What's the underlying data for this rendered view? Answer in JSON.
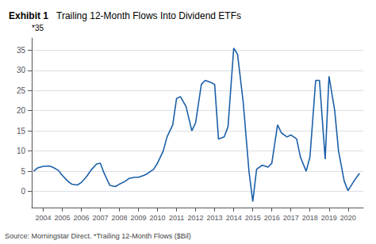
{
  "chart_data": {
    "type": "line",
    "title": "Exhibit 1",
    "subtitle": "Trailing 12-Month Flows Into Dividend ETFs",
    "annotations": [
      "*35",
      "Source: Morningstar Direct. *Trailing 12-Month Flows ($Bil)"
    ],
    "color": "#1A5FA8",
    "x": [
      2003.5,
      2003.7,
      2004.0,
      2004.3,
      2004.5,
      2004.8,
      2005.0,
      2005.3,
      2005.5,
      2005.8,
      2006.0,
      2006.3,
      2006.5,
      2006.8,
      2007.0,
      2007.2,
      2007.5,
      2007.8,
      2008.0,
      2008.3,
      2008.5,
      2008.8,
      2009.0,
      2009.3,
      2009.5,
      2009.8,
      2010.0,
      2010.3,
      2010.5,
      2010.8,
      2011.0,
      2011.2,
      2011.5,
      2011.8,
      2012.0,
      2012.3,
      2012.5,
      2012.8,
      2013.0,
      2013.2,
      2013.5,
      2013.7,
      2014.0,
      2014.2,
      2014.5,
      2014.8,
      2015.0,
      2015.2,
      2015.5,
      2015.8,
      2016.0,
      2016.3,
      2016.5,
      2016.8,
      2017.0,
      2017.3,
      2017.5,
      2017.8,
      2018.0,
      2018.3,
      2018.5,
      2018.8,
      2019.0,
      2019.3,
      2019.5,
      2019.8,
      2020.0,
      2020.3,
      2020.6
    ],
    "values": [
      5.0,
      5.8,
      6.2,
      6.3,
      6.0,
      5.2,
      4.0,
      2.5,
      1.8,
      1.6,
      2.2,
      3.8,
      5.2,
      6.8,
      7.0,
      4.5,
      1.5,
      1.2,
      1.8,
      2.5,
      3.2,
      3.5,
      3.5,
      4.0,
      4.5,
      5.5,
      7.0,
      10.0,
      13.5,
      16.5,
      23.0,
      23.5,
      21.0,
      15.0,
      17.0,
      26.5,
      27.5,
      27.0,
      26.5,
      13.0,
      13.5,
      16.0,
      35.5,
      34.0,
      22.0,
      5.0,
      -2.5,
      5.5,
      6.5,
      6.0,
      7.0,
      16.5,
      14.5,
      13.5,
      14.0,
      13.0,
      8.5,
      5.0,
      8.5,
      27.5,
      27.5,
      8.0,
      28.5,
      20.0,
      10.0,
      2.5,
      0.2,
      2.5,
      4.5
    ],
    "xlim": [
      2003.4,
      2020.8
    ],
    "xticks": [
      2004,
      2005,
      2006,
      2007,
      2008,
      2009,
      2010,
      2011,
      2012,
      2013,
      2014,
      2015,
      2016,
      2017,
      2018,
      2019,
      2020
    ],
    "ylim": [
      -4,
      38
    ],
    "yticks": [
      0,
      5,
      10,
      15,
      20,
      25,
      30,
      35
    ],
    "grid": true
  }
}
